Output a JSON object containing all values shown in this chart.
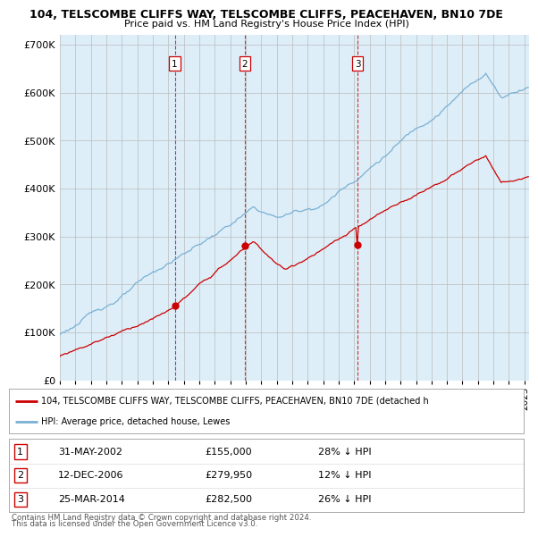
{
  "title1": "104, TELSCOMBE CLIFFS WAY, TELSCOMBE CLIFFS, PEACEHAVEN, BN10 7DE",
  "title2": "Price paid vs. HM Land Registry's House Price Index (HPI)",
  "xlim_start": 1995.0,
  "xlim_end": 2025.3,
  "ylim": [
    0,
    720000
  ],
  "sale_color": "#cc0000",
  "hpi_color": "#7ab0d4",
  "hpi_fill_color": "#ddeef8",
  "sale_label": "104, TELSCOMBE CLIFFS WAY, TELSCOMBE CLIFFS, PEACEHAVEN, BN10 7DE (detached h",
  "hpi_label": "HPI: Average price, detached house, Lewes",
  "transactions": [
    {
      "num": 1,
      "date_x": 2002.42,
      "price": 155000,
      "text": "31-MAY-2002",
      "price_text": "£155,000",
      "pct_text": "28% ↓ HPI"
    },
    {
      "num": 2,
      "date_x": 2006.95,
      "price": 279950,
      "text": "12-DEC-2006",
      "price_text": "£279,950",
      "pct_text": "12% ↓ HPI"
    },
    {
      "num": 3,
      "date_x": 2014.23,
      "price": 282500,
      "text": "25-MAR-2014",
      "price_text": "£282,500",
      "pct_text": "26% ↓ HPI"
    }
  ],
  "footer1": "Contains HM Land Registry data © Crown copyright and database right 2024.",
  "footer2": "This data is licensed under the Open Government Licence v3.0.",
  "background_color": "#ffffff",
  "grid_color": "#bbbbbb"
}
